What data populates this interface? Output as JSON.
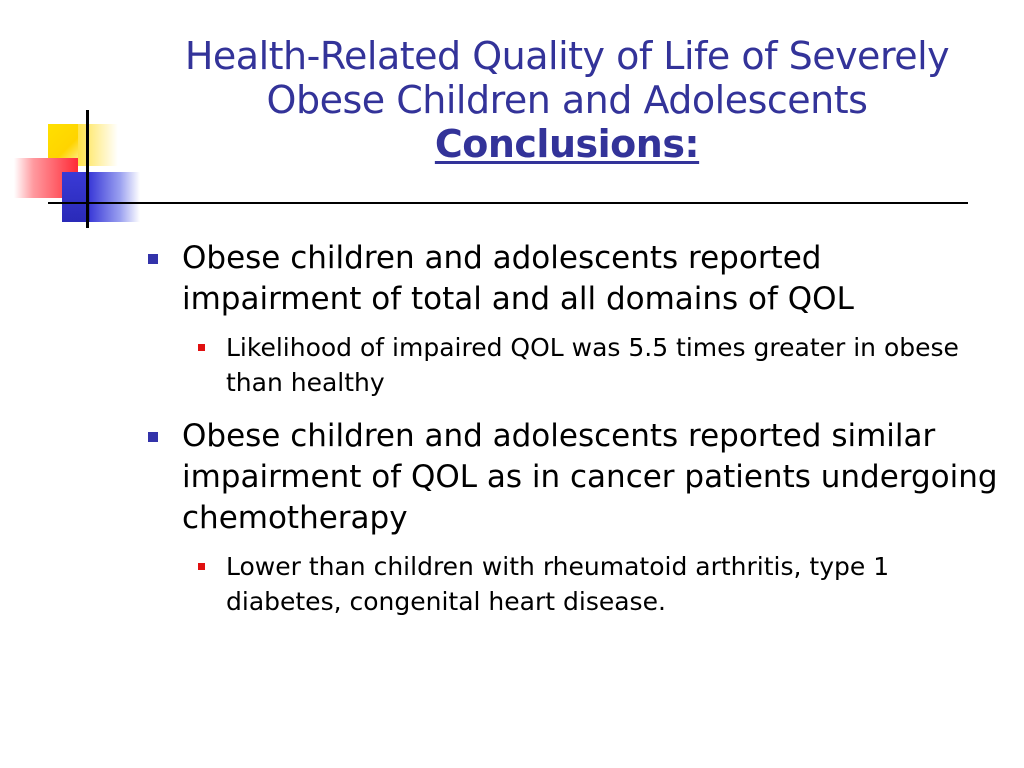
{
  "slide": {
    "title_line1": "Health-Related Quality of Life of Severely",
    "title_line2": "Obese Children and Adolescents",
    "subtitle": "Conclusions:",
    "bullets": [
      {
        "text": "Obese children and adolescents reported impairment of total and all domains of QOL",
        "sub": "Likelihood of impaired QOL was 5.5 times greater in obese than healthy"
      },
      {
        "text": "Obese children and adolescents reported similar impairment of QOL as in cancer patients undergoing chemotherapy",
        "sub": "Lower than children with rheumatoid arthritis, type 1 diabetes, congenital heart disease."
      }
    ]
  },
  "colors": {
    "title": "#333399",
    "bullet_marker": "#3333aa",
    "sub_marker": "#e01010"
  }
}
